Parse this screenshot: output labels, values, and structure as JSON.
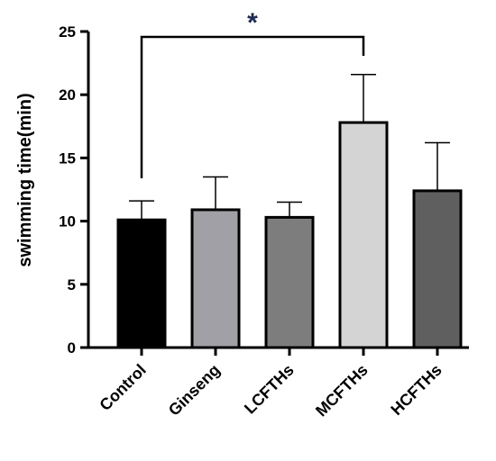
{
  "chart_data": {
    "type": "bar",
    "title": "",
    "xlabel": "",
    "ylabel": "swimming time(min)",
    "ylim": [
      0,
      25
    ],
    "yticks": [
      0,
      5,
      10,
      15,
      20,
      25
    ],
    "grid": false,
    "categories": [
      "Control",
      "Ginseng",
      "LCFTHs",
      "MCFTHs",
      "HCFTHs"
    ],
    "values": [
      10.1,
      10.9,
      10.3,
      17.8,
      12.4
    ],
    "error_upper": [
      1.5,
      2.6,
      1.2,
      3.8,
      3.8
    ],
    "bar_colors": [
      "#000000",
      "#a0a0a6",
      "#7d7d7d",
      "#d4d4d4",
      "#5f5f5f"
    ],
    "significance": [
      {
        "from": "Control",
        "to": "MCFTHs",
        "label": "*"
      }
    ]
  }
}
